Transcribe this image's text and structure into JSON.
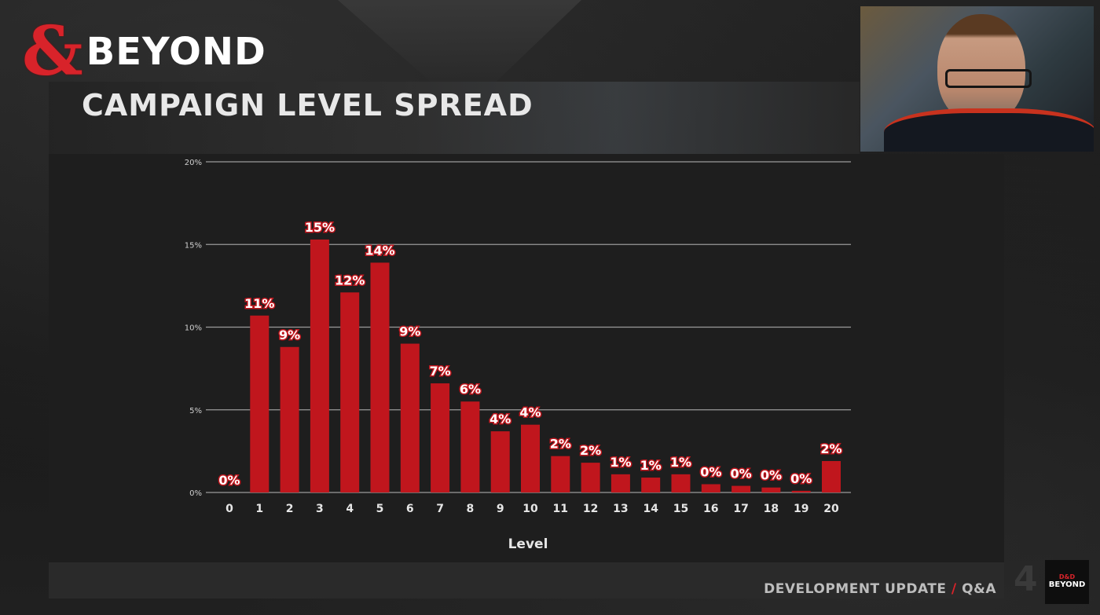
{
  "brand": {
    "logo_symbol": "&",
    "logo_text": "BEYOND",
    "logo_color": "#d8232a"
  },
  "slide": {
    "title": "CAMPAIGN LEVEL SPREAD",
    "footer_left": "DEVELOPMENT UPDATE",
    "footer_sep": "/",
    "footer_right": "Q&A",
    "slide_number": "4",
    "corner_logo_top": "D&D",
    "corner_logo_bottom": "BEYOND"
  },
  "colors": {
    "bar": "#c0161d",
    "grid": "#9a9a9a",
    "panel": "#1e1e1e"
  },
  "chart_data": {
    "type": "bar",
    "title": "",
    "xlabel": "Level",
    "ylabel": "",
    "ylim": [
      0,
      20
    ],
    "yticks": [
      0,
      5,
      10,
      15,
      20
    ],
    "ytick_labels": [
      "0%",
      "5%",
      "10%",
      "15%",
      "20%"
    ],
    "grid": true,
    "categories": [
      "0",
      "1",
      "2",
      "3",
      "4",
      "5",
      "6",
      "7",
      "8",
      "9",
      "10",
      "11",
      "12",
      "13",
      "14",
      "15",
      "16",
      "17",
      "18",
      "19",
      "20"
    ],
    "values": [
      0.0,
      10.7,
      8.8,
      15.3,
      12.1,
      13.9,
      9.0,
      6.6,
      5.5,
      3.7,
      4.1,
      2.2,
      1.8,
      1.1,
      0.9,
      1.1,
      0.5,
      0.4,
      0.3,
      0.1,
      1.9
    ],
    "data_labels": [
      "0%",
      "11%",
      "9%",
      "15%",
      "12%",
      "14%",
      "9%",
      "7%",
      "6%",
      "4%",
      "4%",
      "2%",
      "2%",
      "1%",
      "1%",
      "1%",
      "0%",
      "0%",
      "0%",
      "0%",
      "2%"
    ]
  }
}
